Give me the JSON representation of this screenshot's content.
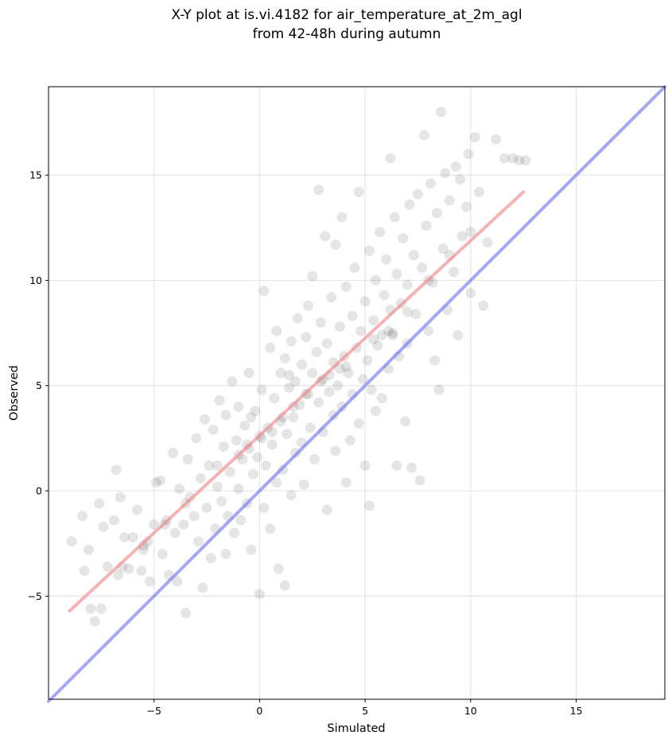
{
  "chart_data": {
    "type": "scatter",
    "title": "X-Y plot at is.vi.4182 for air_temperature_at_2m_agl",
    "subtitle": "from 42-48h during autumn",
    "xlabel": "Simulated",
    "ylabel": "Observed",
    "xlim": [
      -10,
      19.2
    ],
    "ylim": [
      -9.9,
      19.2
    ],
    "xticks": [
      -5,
      0,
      5,
      10,
      15
    ],
    "yticks": [
      -5,
      0,
      5,
      10,
      15
    ],
    "xtick_labels": [
      "−5",
      "0",
      "5",
      "10",
      "15"
    ],
    "ytick_labels": [
      "−5",
      "0",
      "5",
      "10",
      "15"
    ],
    "grid": true,
    "point_color": "#000000",
    "point_alpha": 0.1,
    "fit_line": {
      "x": [
        -9.0,
        12.5
      ],
      "y": [
        -5.7,
        14.2
      ],
      "color": "#f08080"
    },
    "identity_line": {
      "x": [
        -10,
        19.2
      ],
      "y": [
        -10,
        19.2
      ],
      "color": "#6a6af0"
    },
    "points": [
      [
        -8.9,
        -2.4
      ],
      [
        -8.4,
        -1.2
      ],
      [
        -8.3,
        -3.8
      ],
      [
        -8.1,
        -2.8
      ],
      [
        -8.0,
        -5.6
      ],
      [
        -7.8,
        -6.2
      ],
      [
        -7.6,
        -0.6
      ],
      [
        -7.5,
        -5.6
      ],
      [
        -7.4,
        -1.7
      ],
      [
        -7.2,
        -3.6
      ],
      [
        -6.9,
        -1.4
      ],
      [
        -6.8,
        1.0
      ],
      [
        -6.7,
        -4.0
      ],
      [
        -6.6,
        -0.3
      ],
      [
        -6.4,
        -2.2
      ],
      [
        -6.2,
        -3.7
      ],
      [
        -6.0,
        -2.2
      ],
      [
        -5.8,
        -0.9
      ],
      [
        -5.6,
        -3.8
      ],
      [
        -5.5,
        -2.6
      ],
      [
        -5.3,
        -2.4
      ],
      [
        -5.2,
        -4.3
      ],
      [
        -5.0,
        -1.6
      ],
      [
        -4.9,
        0.4
      ],
      [
        -4.7,
        0.5
      ],
      [
        -4.6,
        -3.0
      ],
      [
        -4.4,
        -1.4
      ],
      [
        -4.3,
        -4.0
      ],
      [
        -4.1,
        1.8
      ],
      [
        -4.0,
        -2.0
      ],
      [
        -3.9,
        -4.3
      ],
      [
        -3.8,
        0.1
      ],
      [
        -3.6,
        -1.6
      ],
      [
        -3.5,
        -5.8
      ],
      [
        -3.4,
        1.5
      ],
      [
        -3.3,
        -0.3
      ],
      [
        -3.1,
        -1.2
      ],
      [
        -3.0,
        2.5
      ],
      [
        -2.9,
        -2.4
      ],
      [
        -2.8,
        0.6
      ],
      [
        -2.7,
        -4.6
      ],
      [
        -2.6,
        3.4
      ],
      [
        -2.5,
        -0.8
      ],
      [
        -2.4,
        1.2
      ],
      [
        -2.3,
        -3.2
      ],
      [
        -2.2,
        2.9
      ],
      [
        -2.1,
        -1.8
      ],
      [
        -2.0,
        0.2
      ],
      [
        -1.9,
        4.3
      ],
      [
        -1.8,
        -0.5
      ],
      [
        -1.7,
        2.1
      ],
      [
        -1.6,
        -3.0
      ],
      [
        -1.6,
        3.6
      ],
      [
        -1.5,
        -1.2
      ],
      [
        -1.4,
        0.9
      ],
      [
        -1.3,
        5.2
      ],
      [
        -1.2,
        -2.0
      ],
      [
        -1.1,
        2.4
      ],
      [
        -1.0,
        0.1
      ],
      [
        -1.0,
        4.0
      ],
      [
        -0.9,
        -1.4
      ],
      [
        -0.8,
        1.5
      ],
      [
        -0.7,
        3.1
      ],
      [
        -0.6,
        -0.6
      ],
      [
        -0.5,
        5.6
      ],
      [
        -0.5,
        2.0
      ],
      [
        -0.4,
        -2.8
      ],
      [
        -0.3,
        0.8
      ],
      [
        -0.2,
        3.8
      ],
      [
        -0.1,
        1.6
      ],
      [
        0.0,
        -4.9
      ],
      [
        0.0,
        2.6
      ],
      [
        0.1,
        4.8
      ],
      [
        0.2,
        -0.8
      ],
      [
        0.2,
        9.5
      ],
      [
        0.3,
        1.2
      ],
      [
        0.4,
        3.0
      ],
      [
        0.5,
        6.8
      ],
      [
        0.5,
        -1.8
      ],
      [
        0.6,
        2.2
      ],
      [
        0.7,
        4.4
      ],
      [
        0.8,
        0.4
      ],
      [
        0.8,
        7.6
      ],
      [
        0.9,
        -3.7
      ],
      [
        1.0,
        3.3
      ],
      [
        1.0,
        5.6
      ],
      [
        1.1,
        1.0
      ],
      [
        1.2,
        -4.5
      ],
      [
        1.2,
        6.3
      ],
      [
        1.3,
        2.7
      ],
      [
        1.4,
        4.9
      ],
      [
        1.5,
        -0.2
      ],
      [
        1.5,
        7.1
      ],
      [
        1.6,
        3.5
      ],
      [
        1.7,
        5.2
      ],
      [
        1.7,
        1.8
      ],
      [
        1.8,
        8.2
      ],
      [
        1.9,
        4.1
      ],
      [
        2.0,
        6.0
      ],
      [
        2.0,
        2.3
      ],
      [
        2.1,
        0.3
      ],
      [
        2.2,
        7.3
      ],
      [
        2.2,
        4.6
      ],
      [
        2.3,
        8.8
      ],
      [
        2.4,
        3.0
      ],
      [
        2.5,
        5.6
      ],
      [
        2.5,
        10.2
      ],
      [
        2.6,
        1.5
      ],
      [
        2.7,
        6.6
      ],
      [
        2.8,
        14.3
      ],
      [
        2.8,
        4.2
      ],
      [
        2.9,
        8.0
      ],
      [
        3.0,
        2.8
      ],
      [
        3.0,
        5.3
      ],
      [
        3.1,
        12.1
      ],
      [
        3.2,
        -0.9
      ],
      [
        3.2,
        7.0
      ],
      [
        3.3,
        4.7
      ],
      [
        3.4,
        9.2
      ],
      [
        3.5,
        3.6
      ],
      [
        3.5,
        6.1
      ],
      [
        3.6,
        1.9
      ],
      [
        3.6,
        11.7
      ],
      [
        3.7,
        5.0
      ],
      [
        3.8,
        7.8
      ],
      [
        3.9,
        13.0
      ],
      [
        3.9,
        4.0
      ],
      [
        4.0,
        6.4
      ],
      [
        4.1,
        0.4
      ],
      [
        4.1,
        9.7
      ],
      [
        4.2,
        5.6
      ],
      [
        4.3,
        2.4
      ],
      [
        4.4,
        8.3
      ],
      [
        4.4,
        4.6
      ],
      [
        4.5,
        10.6
      ],
      [
        4.6,
        6.8
      ],
      [
        4.7,
        14.2
      ],
      [
        4.7,
        3.2
      ],
      [
        4.8,
        7.6
      ],
      [
        4.9,
        5.3
      ],
      [
        5.0,
        9.0
      ],
      [
        5.0,
        1.2
      ],
      [
        5.1,
        6.2
      ],
      [
        5.2,
        11.4
      ],
      [
        5.2,
        -0.7
      ],
      [
        5.3,
        4.8
      ],
      [
        5.4,
        8.1
      ],
      [
        5.5,
        10.0
      ],
      [
        5.5,
        3.8
      ],
      [
        5.6,
        6.9
      ],
      [
        5.7,
        12.3
      ],
      [
        5.8,
        7.4
      ],
      [
        5.8,
        4.4
      ],
      [
        5.9,
        9.3
      ],
      [
        6.0,
        11.0
      ],
      [
        6.1,
        5.8
      ],
      [
        6.2,
        15.8
      ],
      [
        6.2,
        8.6
      ],
      [
        6.3,
        7.5
      ],
      [
        6.4,
        13.0
      ],
      [
        6.5,
        1.2
      ],
      [
        6.5,
        10.3
      ],
      [
        6.6,
        6.4
      ],
      [
        6.7,
        8.9
      ],
      [
        6.8,
        12.0
      ],
      [
        6.9,
        3.3
      ],
      [
        7.0,
        9.8
      ],
      [
        7.0,
        7.0
      ],
      [
        7.1,
        13.6
      ],
      [
        7.2,
        1.1
      ],
      [
        7.3,
        11.2
      ],
      [
        7.4,
        8.4
      ],
      [
        7.5,
        14.1
      ],
      [
        7.6,
        0.5
      ],
      [
        7.7,
        10.6
      ],
      [
        7.8,
        16.9
      ],
      [
        7.9,
        12.6
      ],
      [
        8.0,
        7.6
      ],
      [
        8.1,
        14.6
      ],
      [
        8.2,
        9.9
      ],
      [
        8.3,
        6.2
      ],
      [
        8.4,
        13.2
      ],
      [
        8.5,
        4.8
      ],
      [
        8.6,
        18.0
      ],
      [
        8.7,
        11.5
      ],
      [
        8.8,
        15.1
      ],
      [
        8.9,
        8.6
      ],
      [
        9.0,
        13.8
      ],
      [
        9.2,
        10.4
      ],
      [
        9.3,
        15.4
      ],
      [
        9.4,
        7.4
      ],
      [
        9.5,
        14.8
      ],
      [
        9.6,
        12.1
      ],
      [
        9.8,
        13.5
      ],
      [
        9.9,
        16.0
      ],
      [
        10.0,
        9.4
      ],
      [
        10.2,
        16.8
      ],
      [
        10.4,
        14.2
      ],
      [
        10.6,
        8.8
      ],
      [
        10.8,
        11.8
      ],
      [
        11.2,
        16.7
      ],
      [
        11.6,
        15.8
      ],
      [
        12.0,
        15.8
      ],
      [
        12.3,
        15.7
      ],
      [
        12.6,
        15.7
      ],
      [
        6.3,
        7.4
      ],
      [
        3.8,
        5.8
      ],
      [
        2.9,
        5.2
      ],
      [
        1.6,
        4.0
      ],
      [
        0.6,
        2.8
      ],
      [
        0.1,
        2.5
      ],
      [
        -0.6,
        2.2
      ],
      [
        4.1,
        5.9
      ],
      [
        5.4,
        7.2
      ],
      [
        6.1,
        7.6
      ],
      [
        3.3,
        5.5
      ],
      [
        2.3,
        4.6
      ],
      [
        1.1,
        3.5
      ],
      [
        -1.0,
        1.7
      ],
      [
        -2.0,
        1.2
      ],
      [
        -3.5,
        -0.6
      ],
      [
        -4.5,
        -1.6
      ],
      [
        -5.5,
        -2.8
      ],
      [
        -6.5,
        -3.6
      ],
      [
        7.0,
        8.5
      ],
      [
        8.0,
        10.0
      ],
      [
        9.0,
        11.2
      ],
      [
        10.0,
        12.3
      ],
      [
        -0.4,
        3.5
      ],
      [
        1.4,
        5.5
      ]
    ]
  }
}
